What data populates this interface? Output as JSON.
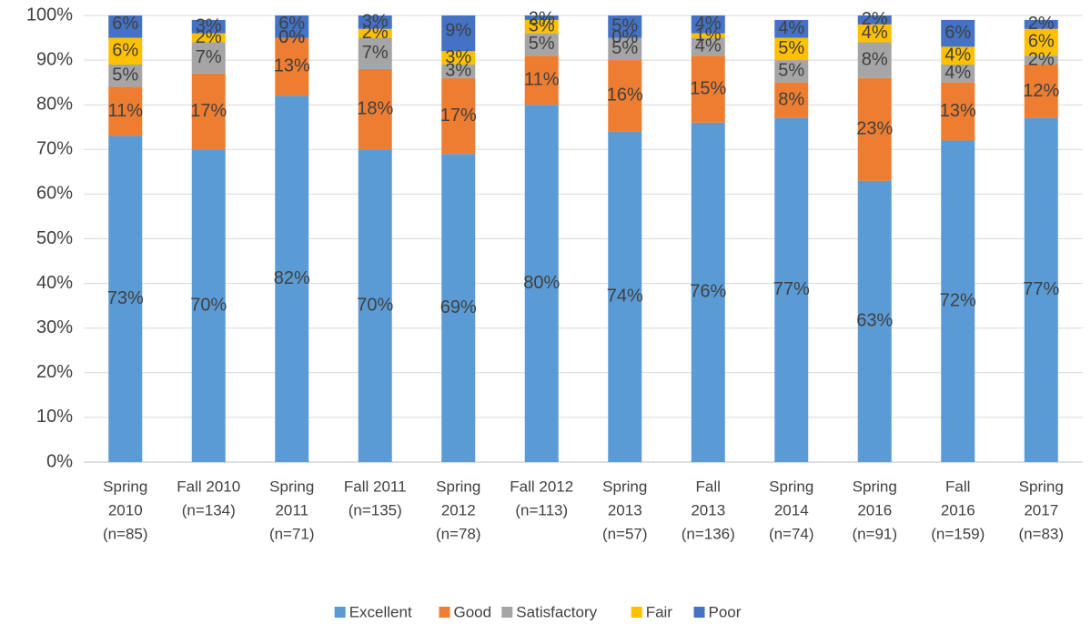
{
  "chart_data": {
    "type": "stacked_bar",
    "categories": [
      [
        "Spring",
        "2010",
        "(n=85)"
      ],
      [
        "Fall 2010",
        "(n=134)"
      ],
      [
        "Spring",
        "2011",
        "(n=71)"
      ],
      [
        "Fall 2011",
        "(n=135)"
      ],
      [
        "Spring",
        "2012",
        "(n=78)"
      ],
      [
        "Fall 2012",
        "(n=113)"
      ],
      [
        "Spring",
        "2013",
        "(n=57)"
      ],
      [
        "Fall",
        "2013",
        "(n=136)"
      ],
      [
        "Spring",
        "2014",
        "(n=74)"
      ],
      [
        "Spring",
        "2016",
        "(n=91)"
      ],
      [
        "Fall",
        "2016",
        "(n=159)"
      ],
      [
        "Spring",
        "2017",
        "(n=83)"
      ]
    ],
    "series": [
      {
        "name": "Excellent",
        "color": "#5b9bd5",
        "values": [
          73,
          70,
          82,
          70,
          69,
          80,
          74,
          76,
          77,
          63,
          72,
          77
        ]
      },
      {
        "name": "Good",
        "color": "#ed7d31",
        "values": [
          11,
          17,
          13,
          18,
          17,
          11,
          16,
          15,
          8,
          23,
          13,
          12
        ]
      },
      {
        "name": "Satisfactory",
        "color": "#a5a5a5",
        "values": [
          5,
          7,
          0,
          7,
          3,
          5,
          5,
          4,
          5,
          8,
          4,
          2
        ]
      },
      {
        "name": "Fair",
        "color": "#ffc000",
        "values": [
          6,
          2,
          0,
          2,
          3,
          3,
          0,
          1,
          5,
          4,
          4,
          6
        ]
      },
      {
        "name": "Poor",
        "color": "#4472c4",
        "values": [
          6,
          3,
          6,
          3,
          9,
          2,
          5,
          4,
          4,
          2,
          6,
          2
        ]
      }
    ],
    "value_labels": [
      [
        "73%",
        "70%",
        "82%",
        "70%",
        "69%",
        "80%",
        "74%",
        "76%",
        "77%",
        "63%",
        "72%",
        "77%"
      ],
      [
        "11%",
        "17%",
        "13%",
        "18%",
        "17%",
        "11%",
        "16%",
        "15%",
        "8%",
        "23%",
        "13%",
        "12%"
      ],
      [
        "5%",
        "7%",
        "0%",
        "7%",
        "3%",
        "5%",
        "5%",
        "4%",
        "5%",
        "8%",
        "4%",
        "2%"
      ],
      [
        "6%",
        "2%",
        "0%",
        "2%",
        "3%",
        "3%",
        "0%",
        "1%",
        "5%",
        "4%",
        "4%",
        "6%"
      ],
      [
        "6%",
        "3%",
        "6%",
        "3%",
        "9%",
        "2%",
        "5%",
        "4%",
        "4%",
        "2%",
        "6%",
        "2%"
      ]
    ],
    "ylim": [
      0,
      100
    ],
    "yticks": [
      {
        "value": 0,
        "label": "0%"
      },
      {
        "value": 10,
        "label": "10%"
      },
      {
        "value": 20,
        "label": "20%"
      },
      {
        "value": 30,
        "label": "30%"
      },
      {
        "value": 40,
        "label": "40%"
      },
      {
        "value": 50,
        "label": "50%"
      },
      {
        "value": 60,
        "label": "60%"
      },
      {
        "value": 70,
        "label": "70%"
      },
      {
        "value": 80,
        "label": "80%"
      },
      {
        "value": 90,
        "label": "90%"
      },
      {
        "value": 100,
        "label": "100%"
      }
    ],
    "grid": true,
    "legend": "bottom"
  }
}
